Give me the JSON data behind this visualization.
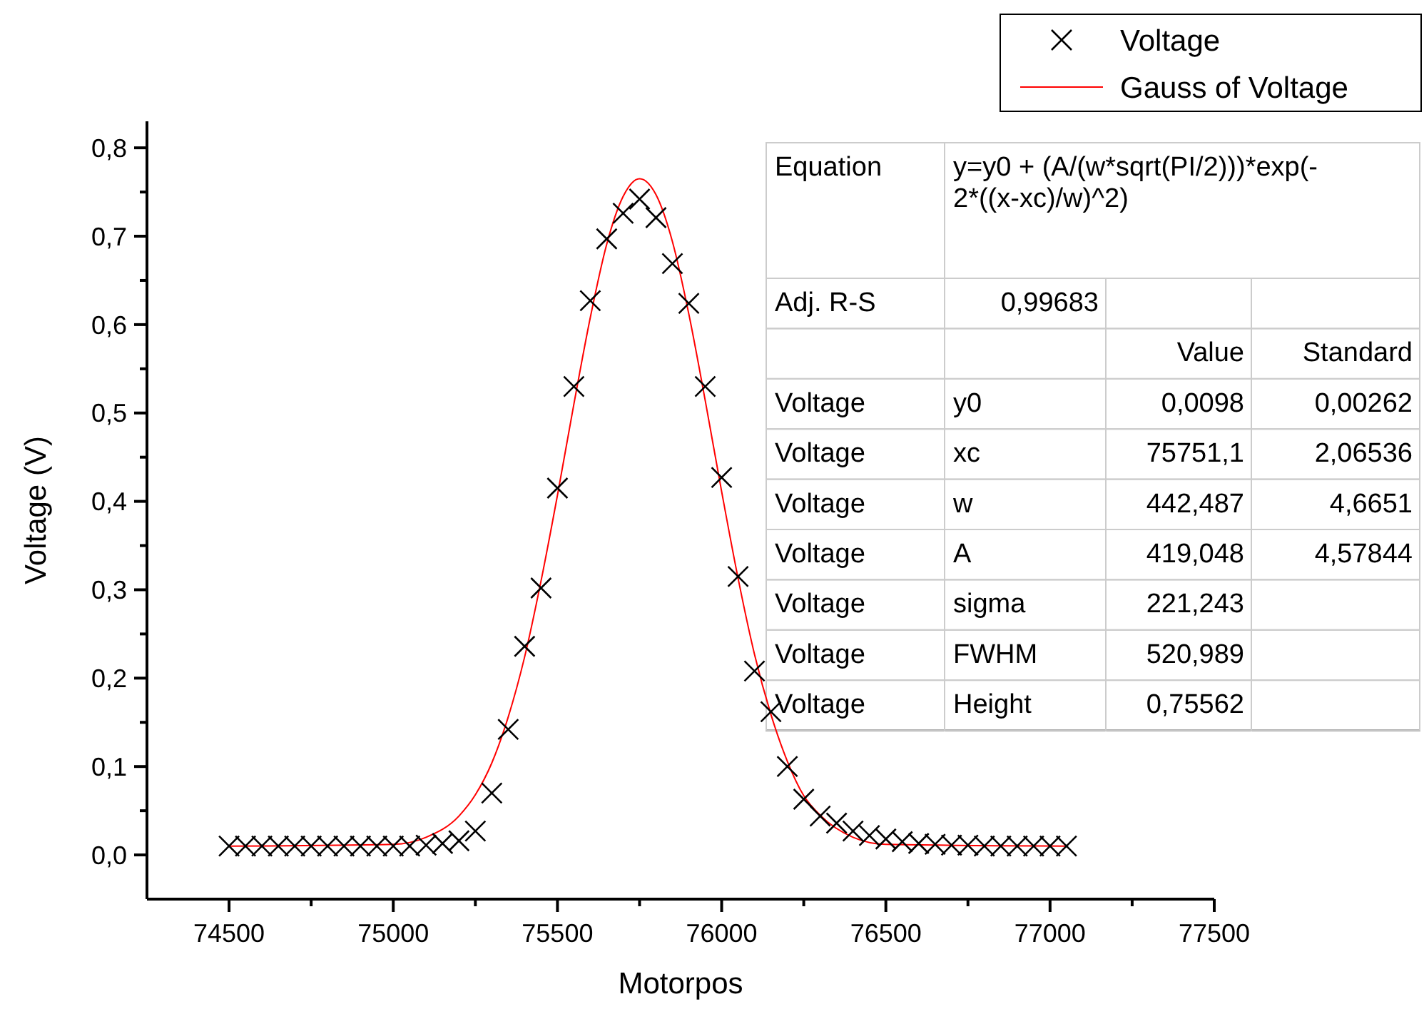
{
  "chart_data": {
    "type": "scatter",
    "xlabel": "Motorpos",
    "ylabel": "Voltage (V)",
    "xlim": [
      74250,
      77500
    ],
    "ylim": [
      -0.05,
      0.83
    ],
    "xticks": [
      74500,
      {
        "value": 74750,
        "label": null
      },
      75000,
      {
        "value": 75250,
        "label": null
      },
      75500,
      {
        "value": 75750,
        "label": null
      },
      76000,
      {
        "value": 76250,
        "label": null
      },
      76500,
      {
        "value": 76750,
        "label": null
      },
      77000,
      {
        "value": 77250,
        "label": null
      },
      77500
    ],
    "yticks": [
      {
        "value": 0,
        "label": "0,0"
      },
      {
        "value": 0.05,
        "label": null
      },
      {
        "value": 0.1,
        "label": "0,1"
      },
      {
        "value": 0.15,
        "label": null
      },
      {
        "value": 0.2,
        "label": "0,2"
      },
      {
        "value": 0.25,
        "label": null
      },
      {
        "value": 0.3,
        "label": "0,3"
      },
      {
        "value": 0.35,
        "label": null
      },
      {
        "value": 0.4,
        "label": "0,4"
      },
      {
        "value": 0.45,
        "label": null
      },
      {
        "value": 0.5,
        "label": "0,5"
      },
      {
        "value": 0.55,
        "label": null
      },
      {
        "value": 0.6,
        "label": "0,6"
      },
      {
        "value": 0.65,
        "label": null
      },
      {
        "value": 0.7,
        "label": "0,7"
      },
      {
        "value": 0.75,
        "label": null
      },
      {
        "value": 0.8,
        "label": "0,8"
      }
    ],
    "legend": "top right",
    "grid": false,
    "series": [
      {
        "name": "Voltage",
        "marker": "cross",
        "color": "#000000",
        "x": [
          74500,
          74550,
          74600,
          74650,
          74700,
          74750,
          74800,
          74850,
          74900,
          74950,
          75000,
          75050,
          75100,
          75150,
          75200,
          75250,
          75300,
          75350,
          75400,
          75450,
          75500,
          75550,
          75600,
          75650,
          75700,
          75750,
          75800,
          75850,
          75900,
          75950,
          76000,
          76050,
          76100,
          76150,
          76200,
          76250,
          76300,
          76350,
          76400,
          76450,
          76500,
          76550,
          76600,
          76650,
          76700,
          76750,
          76800,
          76850,
          76900,
          76950,
          77000,
          77050
        ],
        "values": [
          0.01,
          0.01,
          0.01,
          0.01,
          0.01,
          0.01,
          0.01,
          0.01,
          0.01,
          0.01,
          0.01,
          0.01,
          0.011,
          0.013,
          0.016,
          0.027,
          0.07,
          0.142,
          0.236,
          0.302,
          0.415,
          0.53,
          0.627,
          0.697,
          0.726,
          0.742,
          0.721,
          0.669,
          0.624,
          0.53,
          0.427,
          0.315,
          0.208,
          0.162,
          0.1,
          0.063,
          0.044,
          0.036,
          0.027,
          0.022,
          0.018,
          0.015,
          0.013,
          0.012,
          0.011,
          0.011,
          0.01,
          0.01,
          0.01,
          0.01,
          0.01,
          0.01
        ]
      },
      {
        "name": "Gauss of Voltage",
        "type": "line",
        "marker": "none",
        "line_style": "solid",
        "color": "#ff0000",
        "x": [
          74500,
          75000,
          75100,
          75200,
          75250,
          75300,
          75350,
          75400,
          75450,
          75500,
          75550,
          75600,
          75650,
          75700,
          75750,
          75800,
          75850,
          75900,
          75950,
          76000,
          76050,
          76100,
          76150,
          76200,
          76250,
          76300,
          76400,
          76500,
          77050
        ],
        "values": [
          0.01,
          0.012,
          0.02,
          0.044,
          0.068,
          0.104,
          0.156,
          0.224,
          0.31,
          0.407,
          0.51,
          0.608,
          0.691,
          0.745,
          0.765,
          0.747,
          0.694,
          0.612,
          0.514,
          0.411,
          0.313,
          0.227,
          0.159,
          0.106,
          0.067,
          0.045,
          0.02,
          0.012,
          0.01
        ]
      }
    ],
    "annotations": [
      "Equation\ty=y0 + (A/(w*sqrt(PI/2)))*exp(-2*((x-xc)/w)^2)",
      "Adj. R-S\t0,99683\t\t",
      "\t\tValue\tStandard",
      "Voltage\ty0\t0,0098\t0,00262",
      "Voltage\txc\t75751,1\t2,06536",
      "Voltage\tw\t442,487\t4,6651",
      "Voltage\tA\t419,048\t4,57844",
      "Voltage\tsigma\t221,243\t",
      "Voltage\tFWHM\t520,989\t",
      "Voltage\tHeight\t0,75562\t"
    ]
  }
}
